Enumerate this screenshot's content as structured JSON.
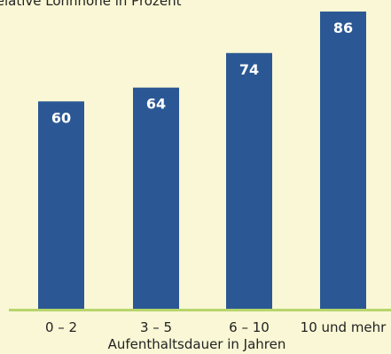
{
  "colors": {
    "background": "#f9f7d5",
    "bar": "#2b5894",
    "bar_label": "#ffffff",
    "baseline": "#b7d56c",
    "text": "#222222"
  },
  "chart_data": {
    "type": "bar",
    "title": "Relative Lohnhöhe in Prozent",
    "xlabel": "Aufenthaltsdauer in Jahren",
    "ylabel": "",
    "categories": [
      "0 – 2",
      "3 – 5",
      "6 – 10",
      "10 und mehr"
    ],
    "values": [
      60,
      64,
      74,
      86
    ],
    "data_labels": [
      "60",
      "64",
      "74",
      "86"
    ],
    "ylim": [
      0,
      90
    ],
    "grid": false,
    "legend": "none"
  }
}
